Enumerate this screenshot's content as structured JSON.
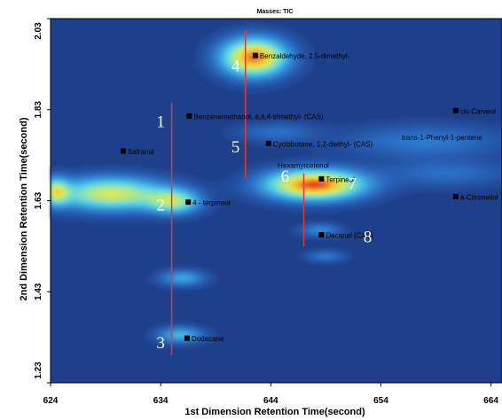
{
  "chart_data": {
    "type": "heatmap",
    "title": "Masses:  TIC",
    "xlabel": "1st Dimension Retention Time(second)",
    "ylabel": "2nd Dimension Retention Time(second)",
    "xlim": [
      624,
      665
    ],
    "ylim": [
      1.23,
      2.03
    ],
    "x_ticks": [
      "624",
      "634",
      "644",
      "654",
      "664"
    ],
    "y_ticks": [
      "1.23",
      "1.43",
      "1.63",
      "1.83",
      "2.03"
    ],
    "colorscale": [
      "#1e3f8a",
      "#2b6cc4",
      "#3aa0dc",
      "#58d2e8",
      "#9be6a2",
      "#e0e94f",
      "#f5b92a",
      "#e2401c"
    ],
    "background_color": "#1e3f8a",
    "line_color": "#e23b2b",
    "peaks": [
      {
        "x": 642.5,
        "y": 1.945,
        "sx": 2.0,
        "sy": 0.028,
        "intensity": 0.95
      },
      {
        "x": 648.0,
        "y": 1.665,
        "sx": 3.0,
        "sy": 0.022,
        "intensity": 1.0
      },
      {
        "x": 629.5,
        "y": 1.645,
        "sx": 3.4,
        "sy": 0.024,
        "intensity": 0.7
      },
      {
        "x": 635.2,
        "y": 1.628,
        "sx": 1.6,
        "sy": 0.018,
        "intensity": 0.55
      },
      {
        "x": 624.5,
        "y": 1.65,
        "sx": 0.8,
        "sy": 0.02,
        "intensity": 0.55
      },
      {
        "x": 636.0,
        "y": 1.46,
        "sx": 1.4,
        "sy": 0.012,
        "intensity": 0.3
      },
      {
        "x": 635.8,
        "y": 1.335,
        "sx": 1.4,
        "sy": 0.012,
        "intensity": 0.35
      },
      {
        "x": 648.5,
        "y": 1.565,
        "sx": 1.3,
        "sy": 0.01,
        "intensity": 0.22
      },
      {
        "x": 649.0,
        "y": 1.508,
        "sx": 1.2,
        "sy": 0.009,
        "intensity": 0.18
      },
      {
        "x": 658.0,
        "y": 1.76,
        "sx": 5.0,
        "sy": 0.025,
        "intensity": 0.18
      },
      {
        "x": 660.0,
        "y": 1.69,
        "sx": 4.0,
        "sy": 0.02,
        "intensity": 0.15
      },
      {
        "x": 644.5,
        "y": 1.78,
        "sx": 2.5,
        "sy": 0.015,
        "intensity": 0.15
      }
    ],
    "compounds": [
      {
        "label": "Benzaldehyde, 2,5-dimethyl-",
        "x": 642.6,
        "y": 1.948
      },
      {
        "label": "Benzenemethanol, á,á,4-trimethyl- (CAS)",
        "x": 636.6,
        "y": 1.815
      },
      {
        "label": "cis-Carveol",
        "x": 660.8,
        "y": 1.827
      },
      {
        "label": "Safranal",
        "x": 630.6,
        "y": 1.738
      },
      {
        "label": "Cyclobutane, 1,2-diethyl- (CAS)",
        "x": 643.8,
        "y": 1.755
      },
      {
        "label": "trans-1-Phenyl-1-pentene",
        "x": null,
        "y": 1.769
      },
      {
        "label": "Hexamyrcetenol",
        "x": null,
        "y": 1.708
      },
      {
        "label": "Terpineol",
        "x": 648.6,
        "y": 1.677
      },
      {
        "label": "4 - terpineol",
        "x": 636.5,
        "y": 1.626
      },
      {
        "label": "á-Citronellol",
        "x": 660.8,
        "y": 1.638
      },
      {
        "label": "Decanal (CAS)",
        "x": 648.6,
        "y": 1.554
      },
      {
        "label": "Dodecane",
        "x": 636.4,
        "y": 1.327
      }
    ],
    "group_numbers": [
      {
        "label": "1",
        "x": 634.0,
        "y": 1.805
      },
      {
        "label": "2",
        "x": 634.0,
        "y": 1.622
      },
      {
        "label": "3",
        "x": 634.0,
        "y": 1.32
      },
      {
        "label": "4",
        "x": 640.8,
        "y": 1.928
      },
      {
        "label": "5",
        "x": 640.8,
        "y": 1.75
      },
      {
        "label": "6",
        "x": 645.3,
        "y": 1.685
      },
      {
        "label": "7",
        "x": 651.4,
        "y": 1.669
      },
      {
        "label": "8",
        "x": 652.8,
        "y": 1.552
      }
    ],
    "vertical_lines": [
      {
        "x": 635.0,
        "y1": 1.29,
        "y2": 1.845
      },
      {
        "x": 641.7,
        "y1": 1.68,
        "y2": 2.005
      },
      {
        "x": 647.0,
        "y1": 1.53,
        "y2": 1.69
      }
    ]
  }
}
